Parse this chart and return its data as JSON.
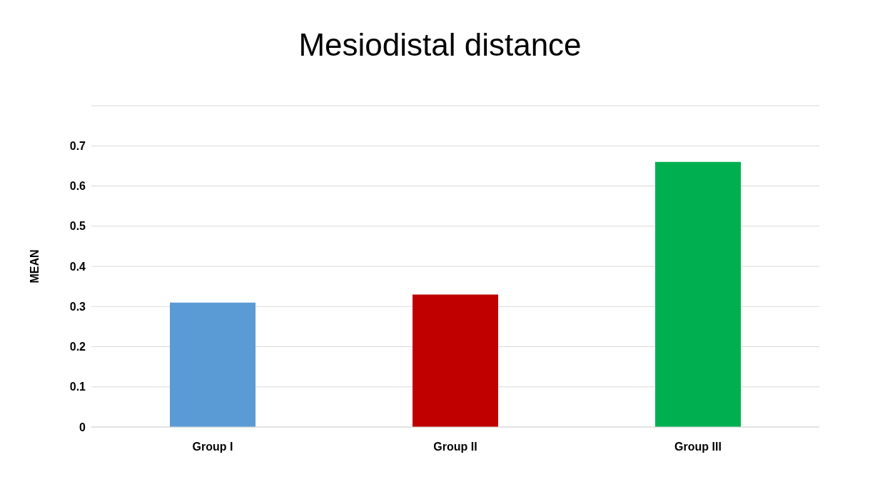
{
  "chart_data": {
    "type": "bar",
    "title": "Mesiodistal distance",
    "ylabel": "MEAN",
    "categories": [
      "Group I",
      "Group II",
      "Group III"
    ],
    "values": [
      0.31,
      0.33,
      0.66
    ],
    "colors": [
      "#5b9bd5",
      "#c00000",
      "#00b050"
    ],
    "ylim": [
      0,
      0.8
    ],
    "yticks": [
      0,
      0.1,
      0.2,
      0.3,
      0.4,
      0.5,
      0.6,
      0.7
    ],
    "grid": "y"
  }
}
